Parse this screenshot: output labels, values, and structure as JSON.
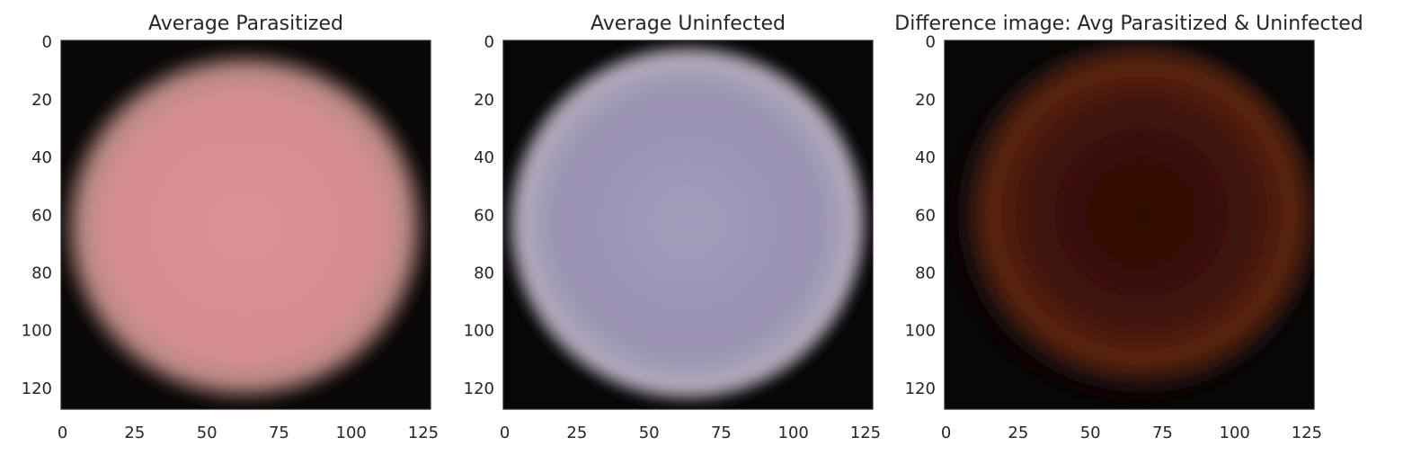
{
  "figure": {
    "panels": [
      {
        "title": "Average Parasitized",
        "image": {
          "description_colors": {
            "background": "#0b0808",
            "cell_fill": "#d68d90",
            "cell_edge": "#b98a83",
            "cell_center": "#da9294"
          }
        },
        "x_ticks": [
          "0",
          "25",
          "50",
          "75",
          "100",
          "125"
        ],
        "y_ticks": [
          "0",
          "20",
          "40",
          "60",
          "80",
          "100",
          "120"
        ],
        "x_tick_values": [
          0,
          25,
          50,
          75,
          100,
          125
        ],
        "y_tick_values": [
          0,
          20,
          40,
          60,
          80,
          100,
          120
        ],
        "image_size": [
          128,
          128
        ]
      },
      {
        "title": "Average Uninfected",
        "image": {
          "description_colors": {
            "background": "#080707",
            "cell_fill": "#9a91b2",
            "cell_edge": "#b5aec1",
            "cell_center": "#a49cbb"
          }
        },
        "x_ticks": [
          "0",
          "25",
          "50",
          "75",
          "100",
          "125"
        ],
        "y_ticks": [
          "0",
          "20",
          "40",
          "60",
          "80",
          "100",
          "120"
        ],
        "x_tick_values": [
          0,
          25,
          50,
          75,
          100,
          125
        ],
        "y_tick_values": [
          0,
          20,
          40,
          60,
          80,
          100,
          120
        ],
        "image_size": [
          128,
          128
        ]
      },
      {
        "title": "Difference image: Avg Parasitized & Uninfected",
        "image": {
          "description_colors": {
            "background": "#080606",
            "cell_fill": "#3e1308",
            "cell_edge": "#5a2410",
            "cell_center": "#2e0c05"
          }
        },
        "x_ticks": [
          "0",
          "25",
          "50",
          "75",
          "100",
          "125"
        ],
        "y_ticks": [
          "0",
          "20",
          "40",
          "60",
          "80",
          "100",
          "120"
        ],
        "x_tick_values": [
          0,
          25,
          50,
          75,
          100,
          125
        ],
        "y_tick_values": [
          0,
          20,
          40,
          60,
          80,
          100,
          120
        ],
        "image_size": [
          128,
          128
        ]
      }
    ]
  }
}
